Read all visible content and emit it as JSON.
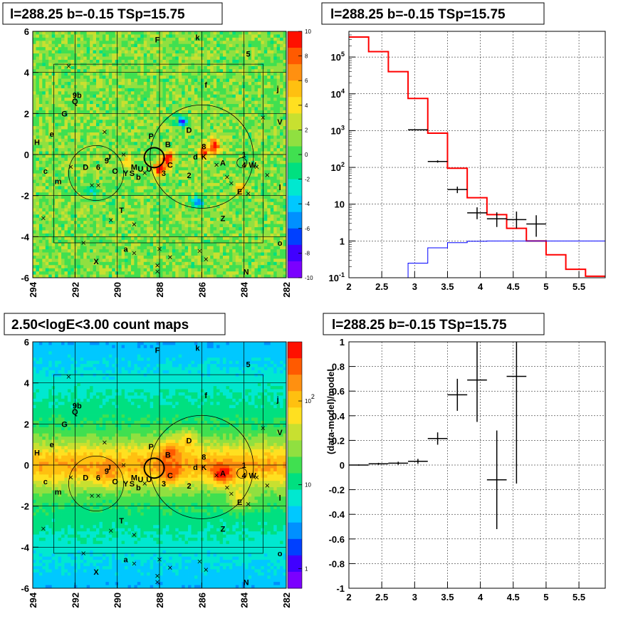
{
  "chart_data": [
    {
      "type": "heatmap",
      "panel": "residual-map",
      "title": "l=288.25 b=-0.15 TSp=15.75",
      "xlim": [
        294,
        282
      ],
      "ylim": [
        -6,
        6
      ],
      "x_ticks": [
        "294",
        "292",
        "290",
        "288",
        "286",
        "284",
        "282"
      ],
      "y_ticks": [
        "6",
        "4",
        "2",
        "0",
        "-2",
        "-4",
        "-6"
      ],
      "z_range": [
        -10,
        10
      ],
      "z_ticks": [
        "10",
        "8",
        "6",
        "4",
        "2",
        "0",
        "-2",
        "-4",
        "-6",
        "-8",
        "-10"
      ],
      "colors": {
        "background": "#4fe050",
        "positive": "#ff0000",
        "negative": "#2020ff",
        "mid": "#40e060"
      }
    },
    {
      "type": "histogram",
      "panel": "spectrum",
      "title": "l=288.25 b=-0.15 TSp=15.75",
      "xlim": [
        2,
        5.9
      ],
      "ylim_log": [
        0.1,
        500000
      ],
      "log_y": true,
      "x_ticks": [
        "2",
        "2.5",
        "3",
        "3.5",
        "4",
        "4.5",
        "5",
        "5.5"
      ],
      "y_ticks": [
        "10^5",
        "10^4",
        "10^3",
        "10^2",
        "10",
        "1",
        "10^-1"
      ],
      "model_total": {
        "color": "#ff0000",
        "bins": [
          2.0,
          2.3,
          2.6,
          2.9,
          3.2,
          3.5,
          3.8,
          4.1,
          4.4,
          4.7,
          5.0,
          5.3,
          5.6,
          5.9
        ],
        "values": [
          350000,
          140000,
          40000,
          7500,
          850,
          95,
          15,
          5.2,
          2.2,
          1,
          0.42,
          0.17,
          0.11
        ]
      },
      "model_source": {
        "color": "#0000ff",
        "bins": [
          2.9,
          3.2,
          3.5,
          3.8,
          4.1,
          4.4,
          4.7,
          5.0,
          5.3,
          5.6,
          5.9
        ],
        "values": [
          0.25,
          0.65,
          0.9,
          0.98,
          1,
          1,
          1,
          1,
          1,
          1
        ]
      },
      "data_points": [
        {
          "x": 3.05,
          "xerr": 0.15,
          "y": 1050,
          "ylo": 1030,
          "yhi": 1070
        },
        {
          "x": 3.35,
          "xerr": 0.15,
          "y": 145,
          "ylo": 135,
          "yhi": 155
        },
        {
          "x": 3.65,
          "xerr": 0.15,
          "y": 25,
          "ylo": 20,
          "yhi": 30
        },
        {
          "x": 3.95,
          "xerr": 0.15,
          "y": 5.8,
          "ylo": 3.9,
          "yhi": 8.2
        },
        {
          "x": 4.25,
          "xerr": 0.15,
          "y": 4,
          "ylo": 2.4,
          "yhi": 6
        },
        {
          "x": 4.55,
          "xerr": 0.15,
          "y": 3.8,
          "ylo": 2.2,
          "yhi": 6.3
        },
        {
          "x": 4.85,
          "xerr": 0.15,
          "y": 2.9,
          "ylo": 1.3,
          "yhi": 5
        }
      ]
    },
    {
      "type": "heatmap",
      "panel": "count-map",
      "title": "2.50<logE<3.00 count maps",
      "xlim": [
        294,
        282
      ],
      "ylim": [
        -6,
        6
      ],
      "x_ticks": [
        "294",
        "292",
        "290",
        "288",
        "286",
        "284",
        "282"
      ],
      "y_ticks": [
        "6",
        "4",
        "2",
        "0",
        "-2",
        "-4",
        "-6"
      ],
      "log_z": true,
      "z_ticks": [
        "10^2",
        "10",
        "1"
      ],
      "colors": {
        "low": "#60e060",
        "high": "#ff0000",
        "mid": "#ff8020"
      }
    },
    {
      "type": "scatter",
      "panel": "ratio",
      "title": "l=288.25 b=-0.15 TSp=15.75",
      "ylabel": "(data-model)/model",
      "xlim": [
        2,
        5.9
      ],
      "ylim": [
        -1,
        1
      ],
      "x_ticks": [
        "2",
        "2.5",
        "3",
        "3.5",
        "4",
        "4.5",
        "5",
        "5.5"
      ],
      "y_ticks": [
        "1",
        "0.8",
        "0.6",
        "0.4",
        "0.2",
        "0",
        "-0.2",
        "-0.4",
        "-0.6",
        "-0.8",
        "-1"
      ],
      "points": [
        {
          "x": 2.15,
          "xerr": 0.15,
          "y": 0.0,
          "yerr": 0.005
        },
        {
          "x": 2.45,
          "xerr": 0.15,
          "y": 0.01,
          "yerr": 0.008
        },
        {
          "x": 2.75,
          "xerr": 0.15,
          "y": 0.015,
          "yerr": 0.012
        },
        {
          "x": 3.05,
          "xerr": 0.15,
          "y": 0.03,
          "yerr": 0.02
        },
        {
          "x": 3.35,
          "xerr": 0.15,
          "y": 0.215,
          "yerr": 0.05
        },
        {
          "x": 3.65,
          "xerr": 0.15,
          "y": 0.57,
          "yerr": 0.13
        },
        {
          "x": 3.95,
          "xerr": 0.15,
          "y": 0.69,
          "yerr": 0.34
        },
        {
          "x": 4.25,
          "xerr": 0.15,
          "y": -0.12,
          "yerr": 0.4
        },
        {
          "x": 4.55,
          "xerr": 0.15,
          "y": 0.72,
          "yerr": 0.87
        }
      ]
    }
  ],
  "sources": [
    {
      "l": 290.9,
      "b": -0.6,
      "t": "6"
    },
    {
      "l": 291.5,
      "b": -0.6,
      "t": "D"
    },
    {
      "l": 290.5,
      "b": -0.3,
      "t": "9"
    },
    {
      "l": 290.4,
      "b": -0.1,
      "t": "J"
    },
    {
      "l": 290.1,
      "b": -0.8,
      "t": "O"
    },
    {
      "l": 289.6,
      "b": -0.9,
      "t": "Y"
    },
    {
      "l": 289.3,
      "b": -0.9,
      "t": "S"
    },
    {
      "l": 289.2,
      "b": -0.6,
      "t": "M"
    },
    {
      "l": 289.0,
      "b": -1.1,
      "t": "b"
    },
    {
      "l": 288.9,
      "b": -0.7,
      "t": "U"
    },
    {
      "l": 288.5,
      "b": -0.7,
      "t": "U2"
    },
    {
      "l": 287.8,
      "b": -0.9,
      "t": "3"
    },
    {
      "l": 287.5,
      "b": -0.5,
      "t": "C"
    },
    {
      "l": 287.6,
      "b": 0.5,
      "t": "B"
    },
    {
      "l": 288.4,
      "b": 0.9,
      "t": "P"
    },
    {
      "l": 286.6,
      "b": 1.2,
      "t": "D2"
    },
    {
      "l": 285.9,
      "b": 0.4,
      "t": "8"
    },
    {
      "l": 286.3,
      "b": -0.1,
      "t": "d"
    },
    {
      "l": 285.9,
      "b": -0.1,
      "t": "K"
    },
    {
      "l": 285.0,
      "b": -0.4,
      "t": "A"
    },
    {
      "l": 284.0,
      "b": 0.0,
      "t": "1"
    },
    {
      "l": 284.0,
      "b": -0.5,
      "t": "4"
    },
    {
      "l": 283.6,
      "b": -0.5,
      "t": "W"
    },
    {
      "l": 286.6,
      "b": -1.0,
      "t": "2"
    },
    {
      "l": 284.2,
      "b": -1.8,
      "t": "E"
    },
    {
      "l": 292.5,
      "b": 2.0,
      "t": "G"
    },
    {
      "l": 292.0,
      "b": 2.6,
      "t": "Q"
    },
    {
      "l": 291.9,
      "b": 2.9,
      "t": "9b"
    },
    {
      "l": 293.1,
      "b": 1.0,
      "t": "e"
    },
    {
      "l": 293.8,
      "b": 0.6,
      "t": "H"
    },
    {
      "l": 293.4,
      "b": -0.8,
      "t": "c"
    },
    {
      "l": 292.8,
      "b": -1.3,
      "t": "m"
    },
    {
      "l": 289.8,
      "b": -2.7,
      "t": "T"
    },
    {
      "l": 285.0,
      "b": -3.1,
      "t": "Z"
    },
    {
      "l": 289.6,
      "b": -4.6,
      "t": "a"
    },
    {
      "l": 291.0,
      "b": -5.2,
      "t": "X"
    },
    {
      "l": 283.9,
      "b": -5.7,
      "t": "N"
    },
    {
      "l": 288.1,
      "b": 5.6,
      "t": "F"
    },
    {
      "l": 286.2,
      "b": 5.7,
      "t": "k"
    },
    {
      "l": 285.8,
      "b": 3.4,
      "t": "f"
    },
    {
      "l": 283.8,
      "b": 4.9,
      "t": "5"
    },
    {
      "l": 282.3,
      "b": 1.6,
      "t": "V"
    },
    {
      "l": 282.4,
      "b": 3.2,
      "t": "j"
    },
    {
      "l": 282.3,
      "b": -1.6,
      "t": "l"
    },
    {
      "l": 282.3,
      "b": -4.3,
      "t": "o"
    }
  ]
}
